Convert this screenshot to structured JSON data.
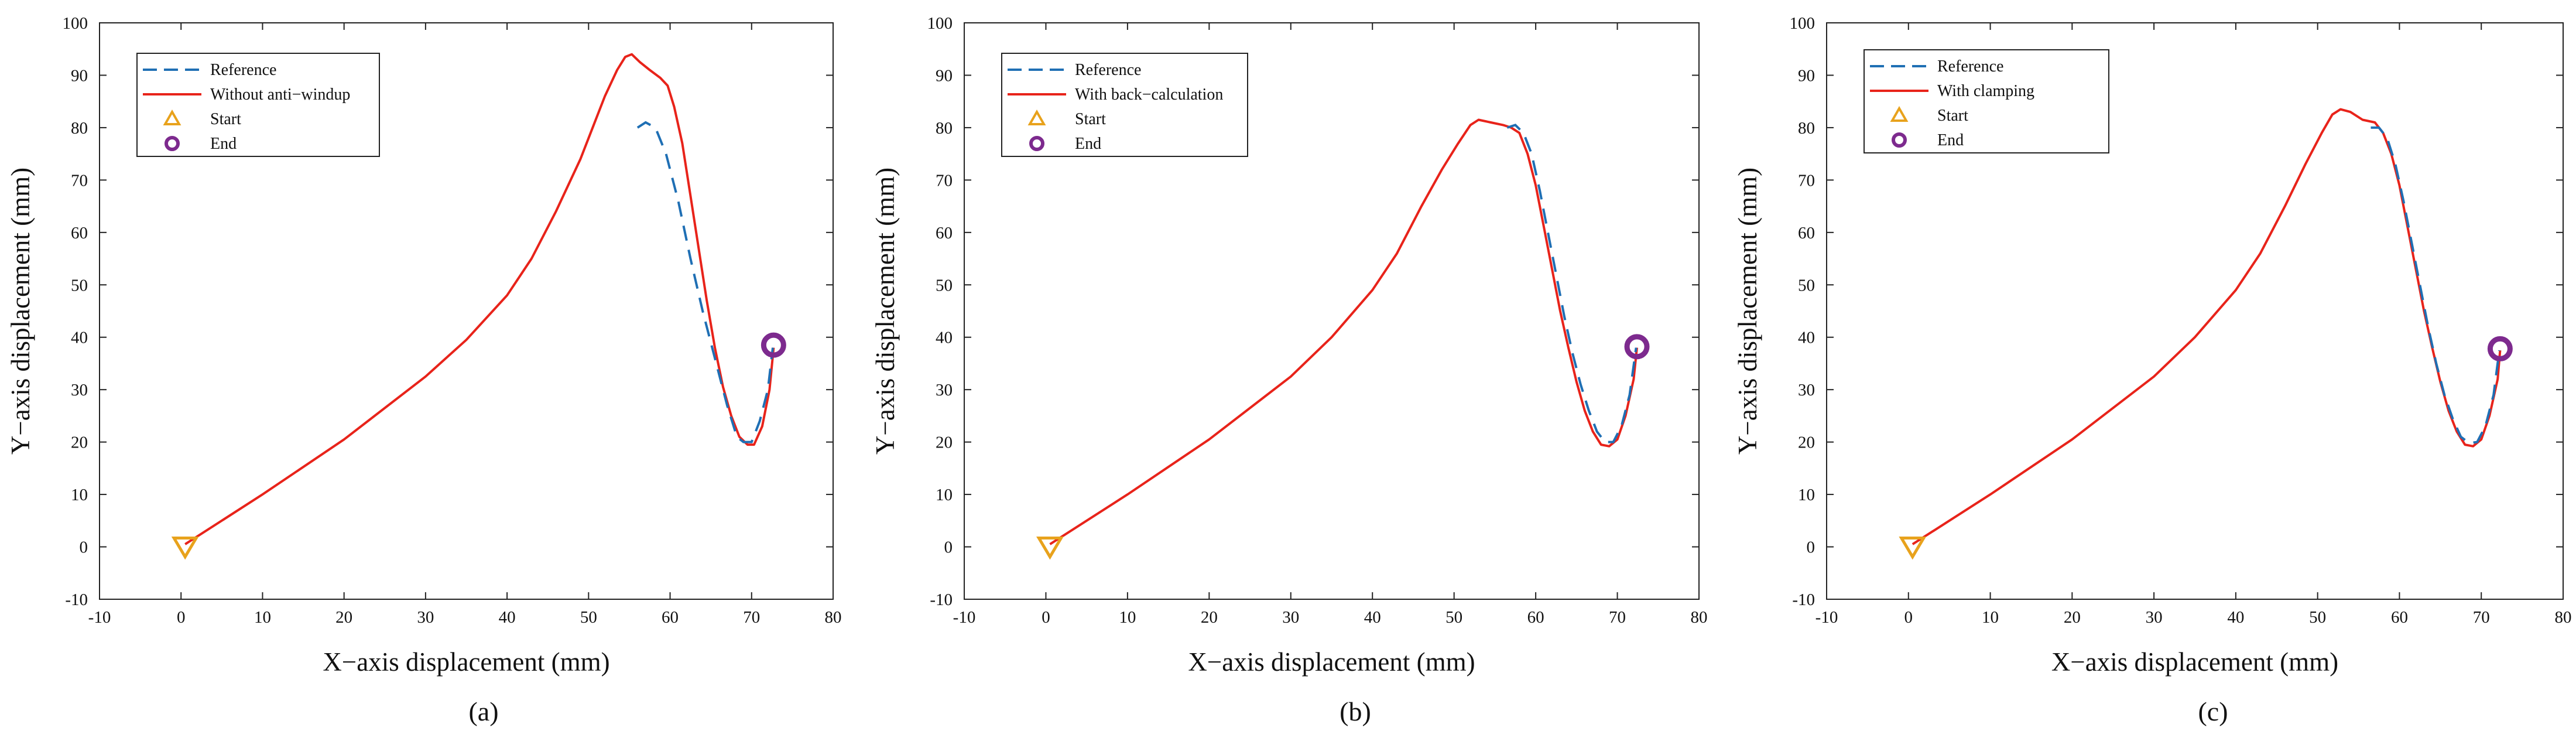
{
  "figure": {
    "captions": [
      "(a)",
      "(b)",
      "(c)"
    ]
  },
  "chart_data": [
    {
      "type": "line",
      "panel": "a",
      "xlabel": "X−axis displacement (mm)",
      "ylabel": "Y−axis displacement (mm)",
      "xlim": [
        -10,
        80
      ],
      "ylim": [
        -10,
        100
      ],
      "xticks": [
        "-10",
        "0",
        "10",
        "20",
        "30",
        "40",
        "50",
        "60",
        "70",
        "80"
      ],
      "yticks": [
        "-10",
        "0",
        "10",
        "20",
        "30",
        "40",
        "50",
        "60",
        "70",
        "80",
        "90",
        "100"
      ],
      "legend_position": "top-left",
      "legend": [
        "Reference",
        "Without anti−windup",
        "Start",
        "End"
      ],
      "colors": {
        "reference": "#1f6fb4",
        "actual": "#e8231a",
        "start": "#e8a21c",
        "end": "#7d2a8e"
      },
      "series": [
        {
          "name": "Reference",
          "style": "dashed",
          "points": [
            [
              56,
              80
            ],
            [
              57,
              81
            ],
            [
              58.2,
              80
            ],
            [
              59.5,
              75
            ],
            [
              61,
              66
            ],
            [
              62.5,
              55
            ],
            [
              64,
              45
            ],
            [
              65.5,
              36
            ],
            [
              67,
              27
            ],
            [
              68.2,
              21
            ],
            [
              69,
              20
            ],
            [
              70,
              20
            ],
            [
              71,
              24
            ],
            [
              72,
              30
            ],
            [
              72.6,
              38
            ]
          ]
        },
        {
          "name": "Without anti−windup",
          "style": "solid",
          "points": [
            [
              0.5,
              0.5
            ],
            [
              10,
              10
            ],
            [
              20,
              20.5
            ],
            [
              30,
              32.5
            ],
            [
              35,
              39.5
            ],
            [
              40,
              48
            ],
            [
              43,
              55
            ],
            [
              46,
              64
            ],
            [
              49,
              74
            ],
            [
              52,
              86
            ],
            [
              53.5,
              91
            ],
            [
              54.5,
              93.5
            ],
            [
              55.3,
              94
            ],
            [
              56.3,
              92.5
            ],
            [
              57.5,
              91
            ],
            [
              58.8,
              89.5
            ],
            [
              59.7,
              88
            ],
            [
              60.5,
              84
            ],
            [
              61.5,
              77
            ],
            [
              62.5,
              67
            ],
            [
              63.5,
              57
            ],
            [
              64.5,
              47
            ],
            [
              65.5,
              38
            ],
            [
              66.5,
              30.5
            ],
            [
              67.5,
              25
            ],
            [
              68.5,
              21
            ],
            [
              69.5,
              19.5
            ],
            [
              70.3,
              19.5
            ],
            [
              71.3,
              23
            ],
            [
              72.2,
              30
            ],
            [
              72.7,
              38
            ]
          ]
        }
      ],
      "start": [
        0.5,
        0
      ],
      "end": [
        72.7,
        38.5
      ]
    },
    {
      "type": "line",
      "panel": "b",
      "xlabel": "X−axis displacement (mm)",
      "ylabel": "Y−axis displacement (mm)",
      "xlim": [
        -10,
        80
      ],
      "ylim": [
        -10,
        100
      ],
      "xticks": [
        "-10",
        "0",
        "10",
        "20",
        "30",
        "40",
        "50",
        "60",
        "70",
        "80"
      ],
      "yticks": [
        "-10",
        "0",
        "10",
        "20",
        "30",
        "40",
        "50",
        "60",
        "70",
        "80",
        "90",
        "100"
      ],
      "legend_position": "top-left",
      "legend": [
        "Reference",
        "With back−calculation",
        "Start",
        "End"
      ],
      "colors": {
        "reference": "#1f6fb4",
        "actual": "#e8231a",
        "start": "#e8a21c",
        "end": "#7d2a8e"
      },
      "series": [
        {
          "name": "Reference",
          "style": "dashed",
          "points": [
            [
              56.5,
              80
            ],
            [
              57.5,
              80.5
            ],
            [
              58.5,
              79
            ],
            [
              59.5,
              75
            ],
            [
              60.5,
              68
            ],
            [
              61.5,
              60
            ],
            [
              62.5,
              52
            ],
            [
              63.5,
              44
            ],
            [
              64.5,
              37
            ],
            [
              65.5,
              31
            ],
            [
              66.5,
              26
            ],
            [
              67.5,
              22
            ],
            [
              68.5,
              20
            ],
            [
              69.5,
              20
            ],
            [
              70.5,
              23
            ],
            [
              71.5,
              29
            ],
            [
              72.3,
              38
            ]
          ]
        },
        {
          "name": "With back−calculation",
          "style": "solid",
          "points": [
            [
              0.5,
              0.5
            ],
            [
              10,
              10
            ],
            [
              20,
              20.5
            ],
            [
              30,
              32.5
            ],
            [
              35,
              40
            ],
            [
              40,
              49
            ],
            [
              43,
              56
            ],
            [
              46,
              65
            ],
            [
              48.5,
              72
            ],
            [
              50.5,
              77
            ],
            [
              52,
              80.5
            ],
            [
              53,
              81.5
            ],
            [
              54.5,
              81
            ],
            [
              56,
              80.5
            ],
            [
              57,
              80
            ],
            [
              58,
              79
            ],
            [
              59,
              75
            ],
            [
              60,
              69
            ],
            [
              61,
              61
            ],
            [
              62,
              53
            ],
            [
              63,
              45
            ],
            [
              64,
              38
            ],
            [
              65,
              31.5
            ],
            [
              66,
              26
            ],
            [
              67,
              22
            ],
            [
              68,
              19.5
            ],
            [
              69,
              19.2
            ],
            [
              70,
              20.5
            ],
            [
              71,
              25
            ],
            [
              72,
              32
            ],
            [
              72.4,
              38
            ]
          ]
        }
      ],
      "start": [
        0.5,
        0
      ],
      "end": [
        72.4,
        38.2
      ]
    },
    {
      "type": "line",
      "panel": "c",
      "xlabel": "X−axis displacement (mm)",
      "ylabel": "Y−axis displacement (mm)",
      "xlim": [
        -10,
        80
      ],
      "ylim": [
        -10,
        100
      ],
      "xticks": [
        "-10",
        "0",
        "10",
        "20",
        "30",
        "40",
        "50",
        "60",
        "70",
        "80"
      ],
      "yticks": [
        "-10",
        "0",
        "10",
        "20",
        "30",
        "40",
        "50",
        "60",
        "70",
        "80",
        "90",
        "100"
      ],
      "legend_position": "top-left",
      "legend": [
        "Reference",
        "With clamping",
        "Start",
        "End"
      ],
      "colors": {
        "reference": "#1f6fb4",
        "actual": "#e8231a",
        "start": "#e8a21c",
        "end": "#7d2a8e"
      },
      "series": [
        {
          "name": "Reference",
          "style": "dashed",
          "points": [
            [
              56.5,
              80
            ],
            [
              57.5,
              80
            ],
            [
              58.5,
              78
            ],
            [
              59.5,
              73
            ],
            [
              60.5,
              66
            ],
            [
              61.5,
              58
            ],
            [
              62.5,
              50
            ],
            [
              63.5,
              42
            ],
            [
              64.5,
              35
            ],
            [
              65.5,
              29
            ],
            [
              66.5,
              24.5
            ],
            [
              67.5,
              21
            ],
            [
              68.5,
              19.8
            ],
            [
              69.5,
              20
            ],
            [
              70.5,
              23
            ],
            [
              71.5,
              29
            ],
            [
              72.2,
              37.5
            ]
          ]
        },
        {
          "name": "With clamping",
          "style": "solid",
          "points": [
            [
              0.5,
              0.5
            ],
            [
              10,
              10
            ],
            [
              20,
              20.5
            ],
            [
              30,
              32.5
            ],
            [
              35,
              40
            ],
            [
              40,
              49
            ],
            [
              43,
              56
            ],
            [
              46,
              65
            ],
            [
              48.5,
              73
            ],
            [
              50.5,
              79
            ],
            [
              51.8,
              82.5
            ],
            [
              52.8,
              83.5
            ],
            [
              54,
              83
            ],
            [
              55.5,
              81.5
            ],
            [
              57,
              81
            ],
            [
              58,
              79
            ],
            [
              59,
              75
            ],
            [
              60,
              69
            ],
            [
              61,
              61
            ],
            [
              62,
              53
            ],
            [
              63,
              45
            ],
            [
              64,
              38
            ],
            [
              65,
              31.5
            ],
            [
              66,
              26
            ],
            [
              67,
              22
            ],
            [
              68,
              19.5
            ],
            [
              69,
              19.2
            ],
            [
              70,
              20.5
            ],
            [
              71,
              25
            ],
            [
              72,
              32
            ],
            [
              72.3,
              37.5
            ]
          ]
        }
      ],
      "start": [
        0.5,
        0
      ],
      "end": [
        72.3,
        37.8
      ]
    }
  ]
}
